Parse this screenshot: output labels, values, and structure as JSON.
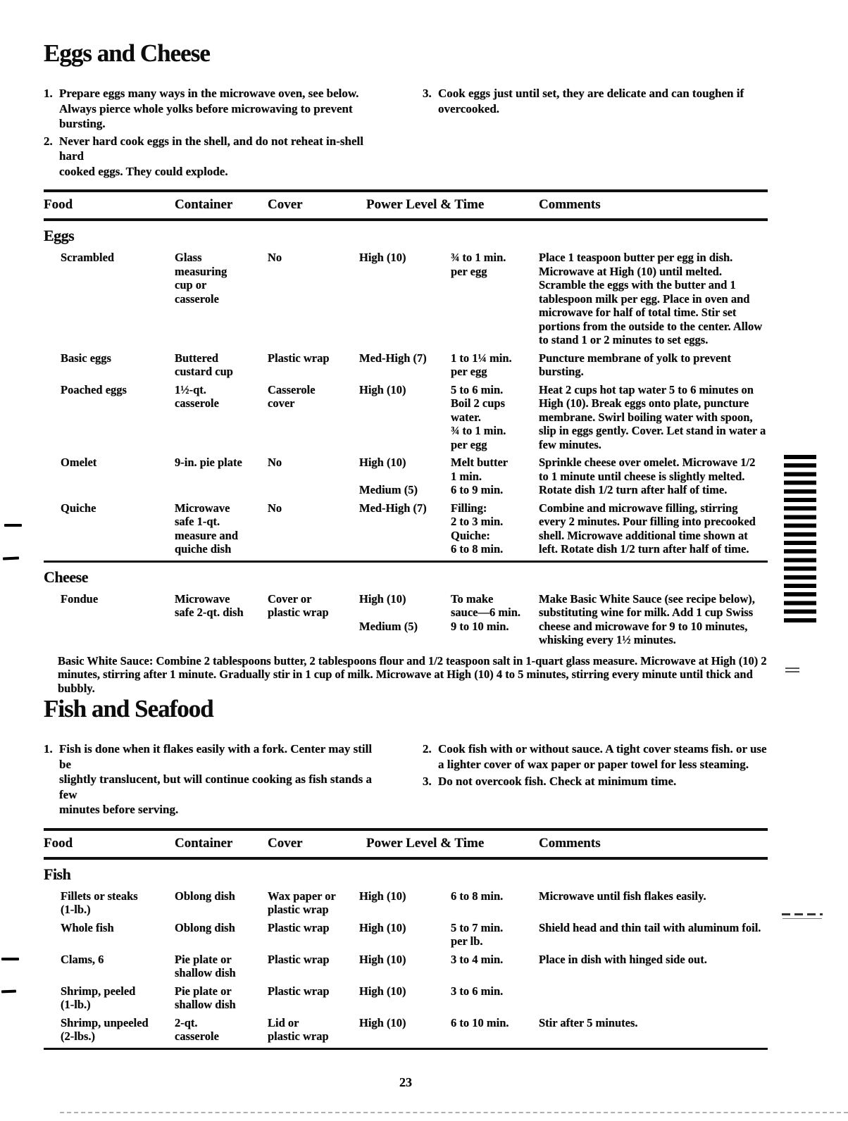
{
  "page_number": "23",
  "eggs_cheese": {
    "title": "Eggs and Cheese",
    "notes_left": [
      {
        "num": "1.",
        "text": "Prepare eggs many ways in the microwave oven, see below.\nAlways pierce whole yolks before microwaving to prevent\nbursting."
      },
      {
        "num": "2.",
        "text": "Never hard cook eggs in the shell, and do not reheat in-shell hard\ncooked eggs. They could explode."
      }
    ],
    "notes_right": [
      {
        "num": "3.",
        "text": "Cook eggs just until set, they are delicate and can toughen if\novercooked."
      }
    ],
    "headers": {
      "food": "Food",
      "container": "Container",
      "cover": "Cover",
      "power_time": "Power Level & Time",
      "comments": "Comments"
    },
    "groups": [
      {
        "name": "Eggs",
        "rows": [
          {
            "food": "Scrambled",
            "container": "Glass\nmeasuring\ncup or\ncasserole",
            "cover": "No",
            "power": "High (10)",
            "time": "¾ to 1 min.\nper egg",
            "comments": "Place 1 teaspoon butter per egg in dish. Microwave at High (10) until melted. Scramble the eggs with the butter and 1 tablespoon milk per egg. Place in oven and microwave for half of total time. Stir set portions from the outside to the center. Allow to stand 1 or 2 minutes to set eggs."
          },
          {
            "food": "Basic eggs",
            "container": "Buttered\ncustard cup",
            "cover": "Plastic wrap",
            "power": "Med-High (7)",
            "time": "1 to 1¼ min.\nper egg",
            "comments": "Puncture membrane of yolk to prevent bursting."
          },
          {
            "food": "Poached eggs",
            "container": "1½-qt.\ncasserole",
            "cover": "Casserole\ncover",
            "power": "High (10)",
            "time": "5 to 6 min.\nBoil 2 cups\nwater.\n¾ to 1 min.\nper egg",
            "comments": "Heat 2 cups hot tap water 5 to 6 minutes on High (10). Break eggs onto plate, puncture membrane. Swirl boiling water with spoon, slip in eggs gently. Cover. Let stand in water a few minutes."
          },
          {
            "food": "Omelet",
            "container": "9-in. pie plate",
            "cover": "No",
            "power": "High (10)\n\nMedium (5)",
            "time": "Melt butter\n1 min.\n6 to 9 min.",
            "comments": "Sprinkle cheese over omelet. Microwave 1/2 to 1 minute until cheese is slightly melted. Rotate dish 1/2 turn after half of time."
          },
          {
            "food": "Quiche",
            "container": "Microwave\nsafe 1-qt.\nmeasure and\nquiche dish",
            "cover": "No",
            "power": "Med-High (7)",
            "time": "Filling:\n2 to 3 min.\nQuiche:\n6 to 8 min.",
            "comments": "Combine and microwave filling, stirring every 2 minutes. Pour filling into precooked shell. Microwave additional time shown at left. Rotate dish 1/2 turn after half of time."
          }
        ]
      },
      {
        "name": "Cheese",
        "rows": [
          {
            "food": "Fondue",
            "container": "Microwave\nsafe 2-qt. dish",
            "cover": "Cover or\nplastic wrap",
            "power": "High (10)\n\nMedium (5)",
            "time": "To make\nsauce—6 min.\n9 to 10 min.",
            "comments": "Make Basic White Sauce (see recipe below), substituting wine for milk. Add 1 cup Swiss cheese and microwave for 9 to 10 minutes, whisking every 1½ minutes."
          }
        ]
      }
    ],
    "footnote_label": "Basic White Sauce:",
    "footnote_text": "Combine 2 tablespoons butter, 2 tablespoons flour and 1/2 teaspoon salt in 1-quart glass measure. Microwave at High (10) 2 minutes, stirring after 1 minute. Gradually stir in 1 cup of milk. Microwave at High (10) 4 to 5 minutes, stirring every minute until thick and bubbly."
  },
  "fish_seafood": {
    "title": "Fish and Seafood",
    "notes_left": [
      {
        "num": "1.",
        "text": "Fish is done when it flakes easily with a fork. Center may still be\nslightly translucent, but will continue cooking as fish stands a few\nminutes before serving."
      }
    ],
    "notes_right": [
      {
        "num": "2.",
        "text": "Cook fish with or without sauce. A tight cover steams fish. or use\na lighter cover of wax paper or paper towel for less steaming."
      },
      {
        "num": "3.",
        "text": "Do not overcook fish. Check at minimum time."
      }
    ],
    "headers": {
      "food": "Food",
      "container": "Container",
      "cover": "Cover",
      "power_time": "Power Level & Time",
      "comments": "Comments"
    },
    "groups": [
      {
        "name": "Fish",
        "rows": [
          {
            "food": "Fillets or steaks\n(1-lb.)",
            "container": "Oblong dish",
            "cover": "Wax paper or\nplastic wrap",
            "power": "High (10)",
            "time": "6 to 8 min.",
            "comments": "Microwave until fish flakes easily."
          },
          {
            "food": "Whole fish",
            "container": "Oblong dish",
            "cover": "Plastic wrap",
            "power": "High (10)",
            "time": "5 to 7 min.\nper lb.",
            "comments": "Shield head and thin tail with aluminum foil."
          },
          {
            "food": "Clams, 6",
            "container": "Pie plate or\nshallow dish",
            "cover": "Plastic wrap",
            "power": "High (10)",
            "time": "3 to 4 min.",
            "comments": "Place in dish with hinged side out."
          },
          {
            "food": "Shrimp, peeled\n(1-lb.)",
            "container": "Pie plate or\nshallow dish",
            "cover": "Plastic wrap",
            "power": "High (10)",
            "time": "3 to 6 min.",
            "comments": ""
          },
          {
            "food": "Shrimp, unpeeled\n(2-lbs.)",
            "container": "2-qt.\ncasserole",
            "cover": "Lid or\nplastic wrap",
            "power": "High (10)",
            "time": "6 to 10 min.",
            "comments": "Stir after 5 minutes."
          }
        ]
      }
    ]
  }
}
